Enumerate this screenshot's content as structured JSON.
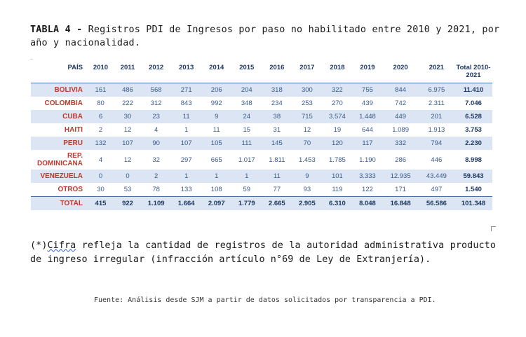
{
  "title": {
    "label": "TABLA 4 -",
    "text": "Registros PDI de Ingresos por paso no habilitado entre 2010 y 2021, por año y nacionalidad."
  },
  "corner_mark": "..",
  "table": {
    "country_header": "PAÍS",
    "years": [
      "2010",
      "2011",
      "2012",
      "2013",
      "2014",
      "2015",
      "2016",
      "2017",
      "2018",
      "2019",
      "2020",
      "2021"
    ],
    "total_header": "Total 2010-2021",
    "rows": [
      {
        "country": "BOLIVIA",
        "values": [
          "161",
          "486",
          "568",
          "271",
          "206",
          "204",
          "318",
          "300",
          "322",
          "755",
          "844",
          "6.975"
        ],
        "total": "11.410"
      },
      {
        "country": "COLOMBIA",
        "values": [
          "80",
          "222",
          "312",
          "843",
          "992",
          "348",
          "234",
          "253",
          "270",
          "439",
          "742",
          "2.311"
        ],
        "total": "7.046"
      },
      {
        "country": "CUBA",
        "values": [
          "6",
          "30",
          "23",
          "11",
          "9",
          "24",
          "38",
          "715",
          "3.574",
          "1.448",
          "449",
          "201"
        ],
        "total": "6.528"
      },
      {
        "country": "HAITI",
        "values": [
          "2",
          "12",
          "4",
          "1",
          "11",
          "15",
          "31",
          "12",
          "19",
          "644",
          "1.089",
          "1.913"
        ],
        "total": "3.753"
      },
      {
        "country": "PERU",
        "values": [
          "132",
          "107",
          "90",
          "107",
          "105",
          "111",
          "145",
          "70",
          "120",
          "117",
          "332",
          "794"
        ],
        "total": "2.230"
      },
      {
        "country": "REP. DOMINICANA",
        "values": [
          "4",
          "12",
          "32",
          "297",
          "665",
          "1.017",
          "1.811",
          "1.453",
          "1.785",
          "1.190",
          "286",
          "446"
        ],
        "total": "8.998"
      },
      {
        "country": "VENEZUELA",
        "values": [
          "0",
          "0",
          "2",
          "1",
          "1",
          "1",
          "11",
          "9",
          "101",
          "3.333",
          "12.935",
          "43.449"
        ],
        "total": "59.843"
      },
      {
        "country": "OTROS",
        "values": [
          "30",
          "53",
          "78",
          "133",
          "108",
          "59",
          "77",
          "93",
          "119",
          "122",
          "171",
          "497"
        ],
        "total": "1.540"
      }
    ],
    "total_row": {
      "country": "TOTAL",
      "values": [
        "415",
        "922",
        "1.109",
        "1.664",
        "2.097",
        "1.779",
        "2.665",
        "2.905",
        "6.310",
        "8.048",
        "16.848",
        "56.586"
      ],
      "total": "101.348"
    }
  },
  "note": {
    "prefix": "(*)",
    "flagged_word": "Cifra",
    "rest": " refleja la cantidad de registros de la autoridad administrativa producto de ingreso irregular (infracción artículo n°69 de Ley de Extranjería)."
  },
  "source": "Fuente: Análisis desde SJM a partir de datos solicitados por transparencia a PDI."
}
